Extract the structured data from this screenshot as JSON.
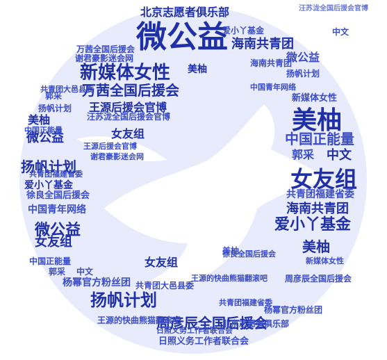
{
  "colors": {
    "primary": "#1f2fa6",
    "secondary": "#3a4cc8",
    "light": "#6b7bd8",
    "background": "#ffffff",
    "shape": "#ebeefc"
  },
  "words": [
    "微公益",
    "新媒体女性",
    "美柚",
    "女友组",
    "扬帆计划",
    "万茜全国后援会",
    "爱小丫基金",
    "海南共青团",
    "中国正能量",
    "郭采",
    "中文",
    "周彦辰全国后援会",
    "王源后援会官博",
    "北京志愿者俱乐部",
    "共青团福建省委",
    "中国青年网络",
    "谢君豪影迷会网",
    "徐良全国后援会",
    "汪苏泷全国后援会官博",
    "杨幂官方粉丝团",
    "共青团大邑县委",
    "王源的快曲熊猫翻滚吧",
    "日照义务工作者联合会",
    "女友组"
  ]
}
